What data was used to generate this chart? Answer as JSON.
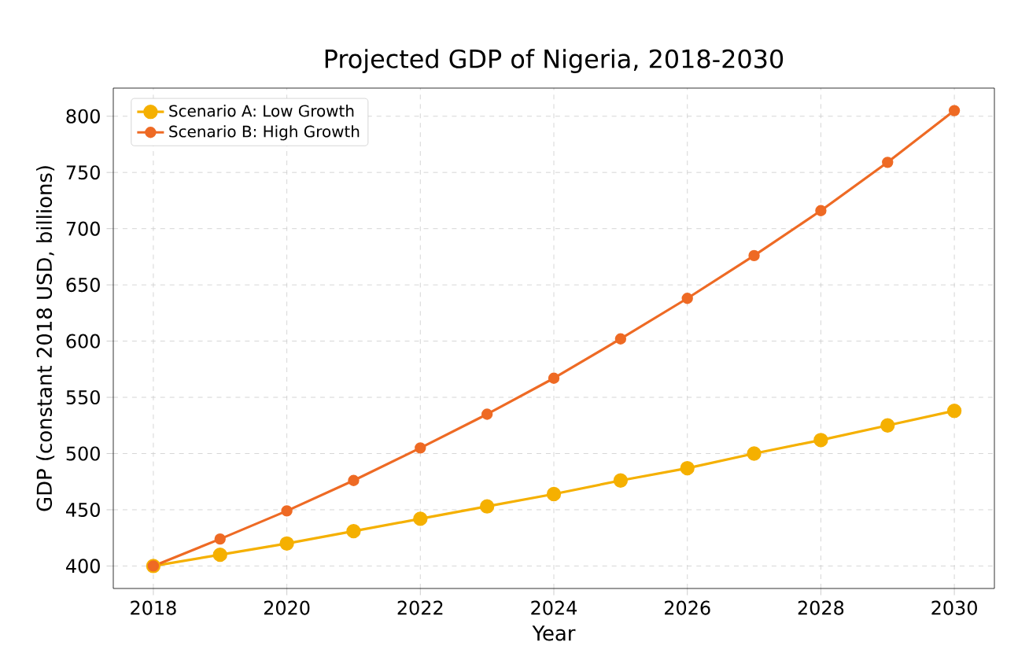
{
  "chart_data": {
    "type": "line",
    "title": "Projected GDP of Nigeria, 2018-2030",
    "xlabel": "Year",
    "ylabel": "GDP (constant 2018 USD, billions)",
    "x": [
      2018,
      2019,
      2020,
      2021,
      2022,
      2023,
      2024,
      2025,
      2026,
      2027,
      2028,
      2029,
      2030
    ],
    "series": [
      {
        "name": "Scenario A: Low Growth",
        "color": "#f5b000",
        "values": [
          400,
          410,
          420,
          431,
          442,
          453,
          464,
          476,
          487,
          500,
          512,
          525,
          538
        ]
      },
      {
        "name": "Scenario B: High Growth",
        "color": "#ee6a24",
        "values": [
          400,
          424,
          449,
          476,
          505,
          535,
          567,
          602,
          638,
          676,
          716,
          759,
          805
        ]
      }
    ],
    "xlim": [
      2017.4,
      2030.6
    ],
    "ylim": [
      380,
      825
    ],
    "xticks": [
      2018,
      2020,
      2022,
      2024,
      2026,
      2028,
      2030
    ],
    "yticks": [
      400,
      450,
      500,
      550,
      600,
      650,
      700,
      750,
      800
    ],
    "grid": true,
    "legend": "top left",
    "marker": "circle",
    "line_style": "solid"
  }
}
